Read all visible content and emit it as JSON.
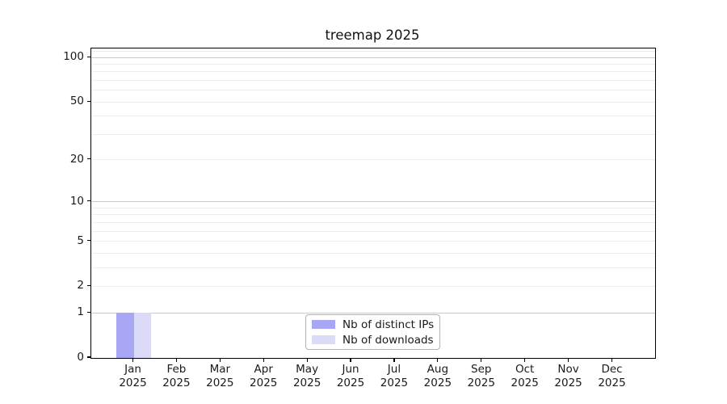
{
  "title": "treemap 2025",
  "chart_data": {
    "type": "bar",
    "title": "treemap 2025",
    "categories": [
      "Jan",
      "Feb",
      "Mar",
      "Apr",
      "May",
      "Jun",
      "Jul",
      "Aug",
      "Sep",
      "Oct",
      "Nov",
      "Dec"
    ],
    "x_sublabel": "2025",
    "series": [
      {
        "name": "Nb of distinct IPs",
        "color": "#a7a7f3",
        "values": [
          1,
          0,
          0,
          0,
          0,
          0,
          0,
          0,
          0,
          0,
          0,
          0
        ]
      },
      {
        "name": "Nb of downloads",
        "color": "#dbdbf7",
        "values": [
          1,
          0,
          0,
          0,
          0,
          0,
          0,
          0,
          0,
          0,
          0,
          0
        ]
      }
    ],
    "xlabel": "",
    "ylabel": "",
    "y_scale": "log1p",
    "ylim": [
      0,
      115
    ],
    "y_tick_values": [
      100,
      50,
      20,
      10,
      5,
      2,
      1,
      0
    ],
    "y_tick_labels": [
      "100",
      "50",
      "20",
      "10",
      "5",
      "2",
      "1",
      "0"
    ],
    "y_major_gridlines": [
      1,
      10,
      100
    ],
    "y_minor_gridlines": [
      2,
      3,
      4,
      5,
      6,
      7,
      8,
      9,
      20,
      30,
      40,
      50,
      60,
      70,
      80,
      90,
      110
    ],
    "grid": true,
    "legend_position": "lower center"
  },
  "colors": {
    "series1": "#a7a7f3",
    "series2": "#dbdbf7",
    "major_grid": "#c9c9c9",
    "minor_grid": "#ededed",
    "spine": "#000000",
    "text": "#1a1a1a",
    "background": "#ffffff"
  }
}
